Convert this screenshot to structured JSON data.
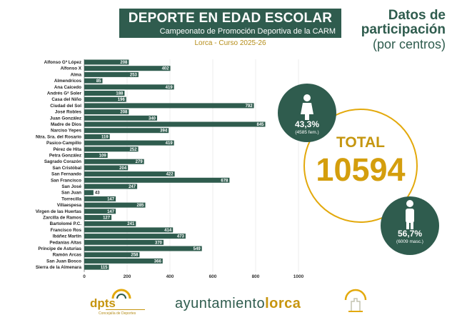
{
  "header": {
    "title": "DEPORTE EN EDAD ESCOLAR",
    "subtitle": "Campeonato de Promoción Deportiva de la CARM",
    "location_line": "Lorca - Curso 2025-26",
    "side_title_1": "Datos de",
    "side_title_2": "participación",
    "side_title_3": "(por centros)"
  },
  "stats": {
    "female_pct": "43,3%",
    "female_note": "(4585 fem.)",
    "male_pct": "56,7%",
    "male_note": "(6009 masc.)",
    "total_label": "TOTAL",
    "total_value": "10594"
  },
  "footer": {
    "ayto_a": "ayuntamiento",
    "ayto_b": "lorca",
    "dpts_text": "dpts",
    "dpts_sub": "Concejalía de Deportes"
  },
  "colors": {
    "bar": "#2f5c4e",
    "accent": "#d49e0d"
  },
  "chart_data": {
    "type": "bar",
    "orientation": "horizontal",
    "categories": [
      "Alfonso Gª López",
      "Alfonso X",
      "Alma",
      "Almendricos",
      "Ana Caicedo",
      "Andrés Gª Soler",
      "Casa del Niño",
      "Ciudad del Sol",
      "José Robles",
      "Juan González",
      "Madre de Dios",
      "Narciso Yepes",
      "Ntra. Sra. del Rosario",
      "Pasico-Campillo",
      "Pérez de Hita",
      "Petra González",
      "Sagrado Corazón",
      "San Cristóbal",
      "San Fernando",
      "San Francisco",
      "San José",
      "San Juan",
      "Torrecilla",
      "Villaespesa",
      "Virgen de las Huertas",
      "Zarcilla de Ramos",
      "Bartolomé P.C.",
      "Francisco Ros",
      "Ibáñez Martín",
      "Pedanías Altas",
      "Príncipe de Asturias",
      "Ramón Arcas",
      "San Juan Bosco",
      "Sierra de la Almenara"
    ],
    "values": [
      208,
      402,
      253,
      85,
      419,
      188,
      196,
      792,
      208,
      340,
      845,
      394,
      119,
      419,
      252,
      109,
      279,
      204,
      422,
      678,
      247,
      43,
      147,
      285,
      147,
      127,
      241,
      414,
      473,
      370,
      549,
      258,
      366,
      115
    ],
    "xlim": [
      0,
      1000
    ],
    "xticks": [
      "0",
      "200",
      "400",
      "600",
      "800",
      "1000"
    ],
    "grid": true
  }
}
